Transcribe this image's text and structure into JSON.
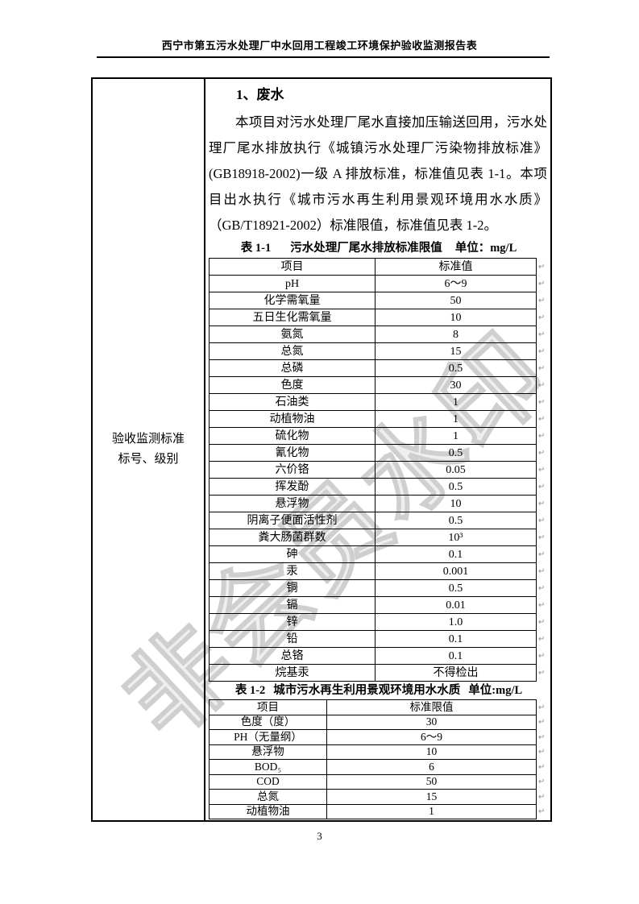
{
  "page": {
    "header_title": "西宁市第五污水处理厂中水回用工程竣工环境保护验收监测报告表",
    "page_number": "3",
    "watermark_text": "非会员水印",
    "return_mark": "↵"
  },
  "standards_cell": {
    "line1": "验收监测标准",
    "line2": "标号、级别"
  },
  "section": {
    "heading": "1、废水",
    "paragraph": "本项目对污水处理厂尾水直接加压输送回用，污水处理厂尾水排放执行《城镇污水处理厂污染物排放标准》(GB18918-2002)一级 A 排放标准，标准值见表 1-1。本项目出水执行《城市污水再生利用景观环境用水水质》（GB/T18921-2002）标准限值，标准值见表 1-2。"
  },
  "table1": {
    "caption_label": "表 1-1",
    "caption_title": "污水处理厂尾水排放标准限值",
    "caption_unit": "单位：mg/L",
    "header": {
      "item": "项目",
      "value": "标准值"
    },
    "rows": [
      {
        "item": "pH",
        "value": "6～9"
      },
      {
        "item": "化学需氧量",
        "value": "50"
      },
      {
        "item": "五日生化需氧量",
        "value": "10"
      },
      {
        "item": "氨氮",
        "value": "8"
      },
      {
        "item": "总氮",
        "value": "15"
      },
      {
        "item": "总磷",
        "value": "0.5"
      },
      {
        "item": "色度",
        "value": "30"
      },
      {
        "item": "石油类",
        "value": "1"
      },
      {
        "item": "动植物油",
        "value": "1"
      },
      {
        "item": "硫化物",
        "value": "1"
      },
      {
        "item": "氰化物",
        "value": "0.5"
      },
      {
        "item": "六价铬",
        "value": "0.05"
      },
      {
        "item": "挥发酚",
        "value": "0.5"
      },
      {
        "item": "悬浮物",
        "value": "10"
      },
      {
        "item": "阴离子便面活性剂",
        "value": "0.5"
      },
      {
        "item": "粪大肠菌群数",
        "value": "10³"
      },
      {
        "item": "砷",
        "value": "0.1"
      },
      {
        "item": "汞",
        "value": "0.001"
      },
      {
        "item": "铜",
        "value": "0.5"
      },
      {
        "item": "镉",
        "value": "0.01"
      },
      {
        "item": "锌",
        "value": "1.0"
      },
      {
        "item": "铅",
        "value": "0.1"
      },
      {
        "item": "总铬",
        "value": "0.1"
      },
      {
        "item": "烷基汞",
        "value": "不得检出"
      }
    ]
  },
  "table2": {
    "caption_label": "表 1-2",
    "caption_title": "城市污水再生利用景观环境用水水质",
    "caption_unit": "单位:mg/L",
    "header": {
      "item": "项目",
      "value": "标准限值"
    },
    "rows": [
      {
        "item": "色度（度）",
        "value": "30"
      },
      {
        "item": "PH（无量纲）",
        "value": "6～9"
      },
      {
        "item": "悬浮物",
        "value": "10"
      },
      {
        "item": "BOD₅",
        "value": "6"
      },
      {
        "item": "COD",
        "value": "50"
      },
      {
        "item": "总氮",
        "value": "15"
      },
      {
        "item": "动植物油",
        "value": "1"
      }
    ]
  }
}
